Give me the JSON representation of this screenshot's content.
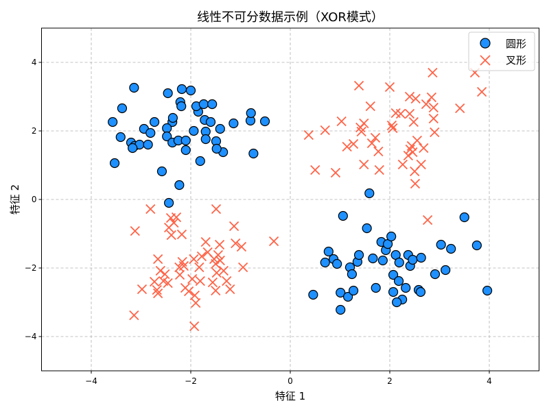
{
  "chart_data": {
    "type": "scatter",
    "title": "线性不可分数据示例（XOR模式）",
    "xlabel": "特征 1",
    "ylabel": "特征 2",
    "xlim": [
      -5,
      5
    ],
    "ylim": [
      -5,
      5
    ],
    "xticks": [
      -4,
      -2,
      0,
      2,
      4
    ],
    "yticks": [
      -4,
      -2,
      0,
      2,
      4
    ],
    "xtick_labels": [
      "−4",
      "−2",
      "0",
      "2",
      "4"
    ],
    "ytick_labels": [
      "−4",
      "−2",
      "0",
      "2",
      "4"
    ],
    "grid": true,
    "legend_position": "top-right",
    "series": [
      {
        "name": "圆形",
        "marker": "circle",
        "color": "#1E90FF",
        "edge_color": "#000000",
        "points": [
          [
            -3.14,
            3.26
          ],
          [
            -3.38,
            2.66
          ],
          [
            -3.57,
            2.26
          ],
          [
            -3.41,
            1.82
          ],
          [
            -3.2,
            1.66
          ],
          [
            -2.94,
            2.06
          ],
          [
            -2.73,
            2.26
          ],
          [
            -2.81,
            1.94
          ],
          [
            -3.13,
            1.56
          ],
          [
            -3.03,
            1.6
          ],
          [
            -2.86,
            1.6
          ],
          [
            -3.53,
            1.06
          ],
          [
            -3.17,
            1.5
          ],
          [
            -2.58,
            0.82
          ],
          [
            -2.46,
            3.1
          ],
          [
            -2.18,
            3.22
          ],
          [
            -2.0,
            3.18
          ],
          [
            -2.21,
            2.84
          ],
          [
            -2.19,
            2.72
          ],
          [
            -2.37,
            2.26
          ],
          [
            -2.48,
            2.08
          ],
          [
            -2.48,
            1.84
          ],
          [
            -2.37,
            1.66
          ],
          [
            -2.25,
            1.72
          ],
          [
            -2.1,
            1.72
          ],
          [
            -2.1,
            1.44
          ],
          [
            -1.81,
            1.12
          ],
          [
            -2.23,
            0.42
          ],
          [
            -2.44,
            -0.1
          ],
          [
            -1.85,
            2.56
          ],
          [
            -1.89,
            2.72
          ],
          [
            -1.74,
            2.78
          ],
          [
            -1.57,
            2.78
          ],
          [
            -1.72,
            2.32
          ],
          [
            -1.94,
            2.0
          ],
          [
            -1.7,
            1.98
          ],
          [
            -1.7,
            1.76
          ],
          [
            -1.6,
            2.26
          ],
          [
            -1.49,
            1.7
          ],
          [
            -1.41,
            2.06
          ],
          [
            -1.35,
            1.38
          ],
          [
            -1.48,
            1.48
          ],
          [
            -1.14,
            2.22
          ],
          [
            -0.8,
            2.3
          ],
          [
            -0.79,
            2.52
          ],
          [
            -0.51,
            2.28
          ],
          [
            -0.74,
            1.34
          ],
          [
            -2.36,
            2.38
          ],
          [
            0.46,
            -2.78
          ],
          [
            0.7,
            -1.84
          ],
          [
            0.77,
            -1.52
          ],
          [
            0.87,
            -1.74
          ],
          [
            0.94,
            -1.88
          ],
          [
            1.06,
            -0.48
          ],
          [
            1.01,
            -2.72
          ],
          [
            1.01,
            -3.22
          ],
          [
            1.16,
            -2.84
          ],
          [
            1.2,
            -1.98
          ],
          [
            1.24,
            -2.18
          ],
          [
            1.27,
            -2.66
          ],
          [
            1.35,
            -1.82
          ],
          [
            1.38,
            -1.62
          ],
          [
            1.54,
            -0.84
          ],
          [
            1.66,
            -1.72
          ],
          [
            1.72,
            -2.58
          ],
          [
            1.83,
            -1.24
          ],
          [
            1.86,
            -1.78
          ],
          [
            1.92,
            -1.48
          ],
          [
            1.96,
            -1.3
          ],
          [
            2.03,
            -1.08
          ],
          [
            2.07,
            -2.2
          ],
          [
            2.07,
            -2.7
          ],
          [
            2.12,
            -1.62
          ],
          [
            2.18,
            -2.38
          ],
          [
            2.19,
            -1.84
          ],
          [
            2.25,
            -2.92
          ],
          [
            2.14,
            -3.0
          ],
          [
            2.32,
            -2.58
          ],
          [
            2.37,
            -1.62
          ],
          [
            2.41,
            -1.94
          ],
          [
            2.46,
            -1.76
          ],
          [
            2.58,
            -2.64
          ],
          [
            2.62,
            -2.7
          ],
          [
            2.63,
            -1.7
          ],
          [
            2.91,
            -2.18
          ],
          [
            3.03,
            -1.32
          ],
          [
            3.12,
            -2.06
          ],
          [
            3.23,
            -1.44
          ],
          [
            3.5,
            -0.52
          ],
          [
            3.75,
            -1.34
          ],
          [
            3.96,
            -2.66
          ],
          [
            1.59,
            0.18
          ]
        ]
      },
      {
        "name": "叉形",
        "marker": "x",
        "color": "#FF6347",
        "points": [
          [
            0.37,
            1.88
          ],
          [
            0.5,
            0.86
          ],
          [
            0.7,
            2.02
          ],
          [
            0.91,
            0.78
          ],
          [
            1.03,
            2.28
          ],
          [
            1.14,
            1.54
          ],
          [
            1.27,
            1.62
          ],
          [
            1.38,
            3.32
          ],
          [
            1.41,
            2.1
          ],
          [
            1.43,
            1.98
          ],
          [
            1.48,
            2.22
          ],
          [
            1.48,
            1.02
          ],
          [
            1.61,
            2.72
          ],
          [
            1.64,
            1.64
          ],
          [
            1.71,
            1.8
          ],
          [
            1.77,
            1.4
          ],
          [
            1.79,
            0.86
          ],
          [
            2.0,
            3.28
          ],
          [
            2.04,
            2.16
          ],
          [
            2.06,
            2.08
          ],
          [
            2.12,
            2.52
          ],
          [
            2.22,
            2.5
          ],
          [
            2.26,
            1.02
          ],
          [
            2.37,
            1.28
          ],
          [
            2.4,
            3.0
          ],
          [
            2.4,
            2.5
          ],
          [
            2.41,
            1.46
          ],
          [
            2.44,
            1.56
          ],
          [
            2.46,
            1.38
          ],
          [
            2.48,
            2.26
          ],
          [
            2.5,
            0.82
          ],
          [
            2.51,
            0.46
          ],
          [
            2.52,
            2.94
          ],
          [
            2.55,
            1.72
          ],
          [
            2.63,
            1.02
          ],
          [
            2.68,
            1.5
          ],
          [
            2.73,
            2.78
          ],
          [
            2.76,
            -0.6
          ],
          [
            2.84,
            2.98
          ],
          [
            2.88,
            2.68
          ],
          [
            2.88,
            2.36
          ],
          [
            2.9,
            1.96
          ],
          [
            3.41,
            2.66
          ],
          [
            3.71,
            3.7
          ],
          [
            3.85,
            3.14
          ],
          [
            2.86,
            3.7
          ],
          [
            -3.14,
            -3.38
          ],
          [
            -3.12,
            -0.92
          ],
          [
            -2.98,
            -2.62
          ],
          [
            -2.81,
            -0.28
          ],
          [
            -2.73,
            -2.4
          ],
          [
            -2.68,
            -2.64
          ],
          [
            -2.66,
            -1.74
          ],
          [
            -2.66,
            -2.74
          ],
          [
            -2.61,
            -2.08
          ],
          [
            -2.55,
            -2.38
          ],
          [
            -2.52,
            -2.18
          ],
          [
            -2.46,
            -2.44
          ],
          [
            -2.44,
            -0.82
          ],
          [
            -2.4,
            -0.54
          ],
          [
            -2.39,
            -1.04
          ],
          [
            -2.34,
            -0.68
          ],
          [
            -2.29,
            -0.52
          ],
          [
            -2.23,
            -1.98
          ],
          [
            -2.22,
            -2.2
          ],
          [
            -2.18,
            -1.02
          ],
          [
            -2.17,
            -1.82
          ],
          [
            -2.14,
            -1.94
          ],
          [
            -2.11,
            -2.58
          ],
          [
            -2.04,
            -2.68
          ],
          [
            -1.97,
            -2.32
          ],
          [
            -1.94,
            -1.74
          ],
          [
            -1.92,
            -2.8
          ],
          [
            -1.9,
            -3.02
          ],
          [
            -1.83,
            -1.98
          ],
          [
            -1.81,
            -2.38
          ],
          [
            -1.78,
            -1.66
          ],
          [
            -1.7,
            -1.24
          ],
          [
            -1.66,
            -1.54
          ],
          [
            -1.56,
            -2.42
          ],
          [
            -1.53,
            -1.74
          ],
          [
            -1.5,
            -1.88
          ],
          [
            -1.49,
            -0.28
          ],
          [
            -1.48,
            -2.14
          ],
          [
            -1.45,
            -1.62
          ],
          [
            -1.42,
            -1.32
          ],
          [
            -1.41,
            -1.78
          ],
          [
            -1.34,
            -2.08
          ],
          [
            -1.28,
            -2.38
          ],
          [
            -1.21,
            -2.62
          ],
          [
            -1.13,
            -0.78
          ],
          [
            -1.1,
            -1.28
          ],
          [
            -0.98,
            -1.38
          ],
          [
            -0.95,
            -1.98
          ],
          [
            -0.33,
            -1.22
          ],
          [
            -1.93,
            -3.7
          ],
          [
            -1.5,
            -2.66
          ]
        ]
      }
    ]
  }
}
